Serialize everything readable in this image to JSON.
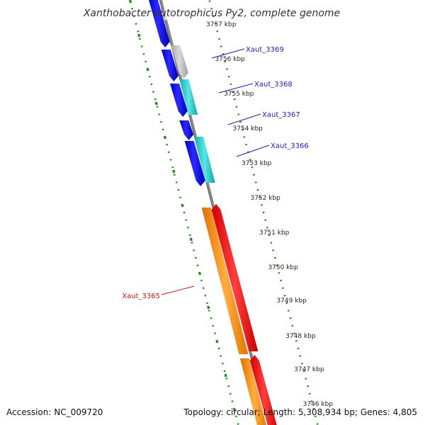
{
  "title": "Xanthobacter autotrophicus Py2, complete genome",
  "accession": "Accession: NC_009720",
  "topology": "Topology: circular; Length: 5,308,934 bp; Genes: 4,805",
  "ticks": [
    {
      "label": "3757 kbp"
    },
    {
      "label": "3756 kbp"
    },
    {
      "label": "3755 kbp"
    },
    {
      "label": "3754 kbp"
    },
    {
      "label": "3753 kbp"
    },
    {
      "label": "3752 kbp"
    },
    {
      "label": "3751 kbp"
    },
    {
      "label": "3750 kbp"
    },
    {
      "label": "3749 kbp"
    },
    {
      "label": "3748 kbp"
    },
    {
      "label": "3747 kbp"
    },
    {
      "label": "3746 kbp"
    }
  ],
  "genes": [
    {
      "name": "Xaut_3369",
      "color": "#1a1acc"
    },
    {
      "name": "Xaut_3368",
      "color": "#1a1acc"
    },
    {
      "name": "Xaut_3367",
      "color": "#1a1acc"
    },
    {
      "name": "Xaut_3366",
      "color": "#1a1acc"
    },
    {
      "name": "Xaut_3365",
      "color": "#dd1111"
    }
  ],
  "colors": {
    "blue_gene": "#0a0ae6",
    "gray_gene": "#b8b8b8",
    "cyan_gene": "#22cccc",
    "orange_gene": "#ff8c00",
    "red_gene": "#ee0000",
    "backbone": "#8c8c8c",
    "dot_ring": "#1a8a1a"
  }
}
